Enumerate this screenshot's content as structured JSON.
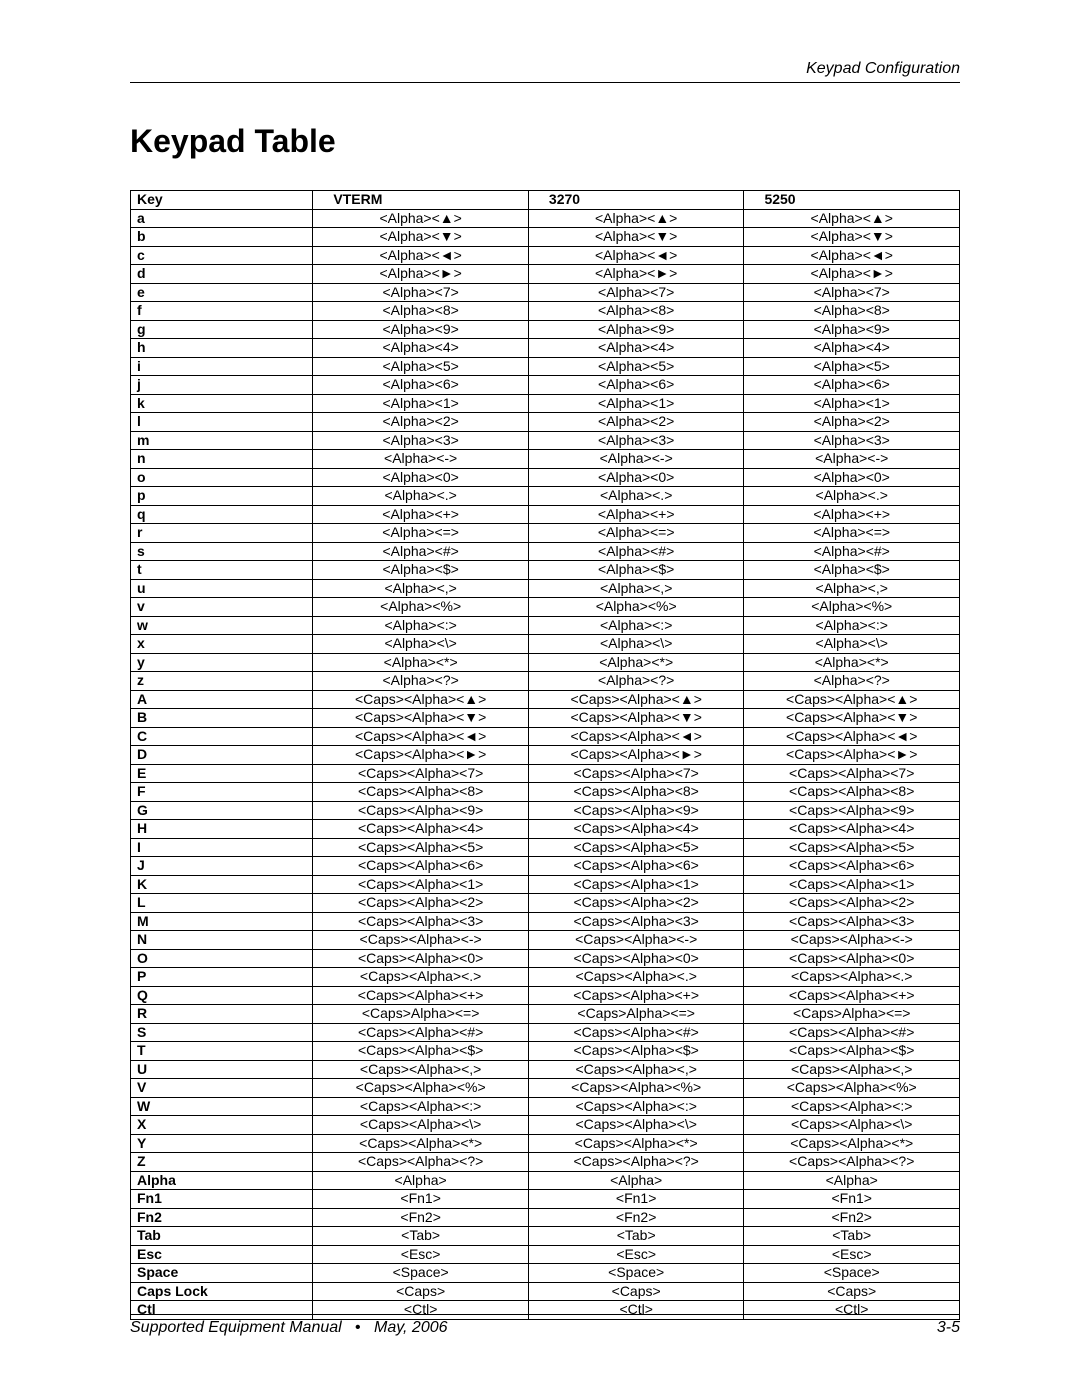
{
  "header": {
    "right": "Keypad Configuration"
  },
  "title": "Keypad Table",
  "footer": {
    "left_a": "Supported Equipment Manual",
    "left_b": "May, 2006",
    "right": "3-5"
  },
  "columns": [
    "Key",
    "VTERM",
    "3270",
    "5250"
  ],
  "glyph": {
    "up": "▲",
    "down": "▼",
    "left": "◄",
    "right": "►"
  },
  "lower_keys": [
    "a",
    "b",
    "c",
    "d",
    "e",
    "f",
    "g",
    "h",
    "i",
    "j",
    "k",
    "l",
    "m",
    "n",
    "o",
    "p",
    "q",
    "r",
    "s",
    "t",
    "u",
    "v",
    "w",
    "x",
    "y",
    "z"
  ],
  "lower_sym": [
    "UP",
    "DOWN",
    "LEFT",
    "RIGHT",
    "7",
    "8",
    "9",
    "4",
    "5",
    "6",
    "1",
    "2",
    "3",
    "-",
    "0",
    ".",
    "+",
    "=",
    "#",
    "$",
    ",",
    "%",
    ":",
    "\\",
    "*",
    "?"
  ],
  "upper_keys": [
    "A",
    "B",
    "C",
    "D",
    "E",
    "F",
    "G",
    "H",
    "I",
    "J",
    "K",
    "L",
    "M",
    "N",
    "O",
    "P",
    "Q",
    "R",
    "S",
    "T",
    "U",
    "V",
    "W",
    "X",
    "Y",
    "Z"
  ],
  "upper_sym": [
    "UP",
    "DOWN",
    "LEFT",
    "RIGHT",
    "7",
    "8",
    "9",
    "4",
    "5",
    "6",
    "1",
    "2",
    "3",
    "-",
    "0",
    ".",
    "+",
    "=",
    "#",
    "$",
    ",",
    "%",
    ":",
    "\\",
    "*",
    "?"
  ],
  "r_variant_index": 17,
  "extra_rows": [
    {
      "key": "Alpha",
      "v": "<Alpha>"
    },
    {
      "key": "Fn1",
      "v": "<Fn1>"
    },
    {
      "key": "Fn2",
      "v": "<Fn2>"
    },
    {
      "key": "Tab",
      "v": "<Tab>"
    },
    {
      "key": "Esc",
      "v": "<Esc>"
    },
    {
      "key": "Space",
      "v": "<Space>"
    },
    {
      "key": "Caps Lock",
      "v": "<Caps>"
    },
    {
      "key": "Ctl",
      "v": "<Ctl>"
    }
  ]
}
